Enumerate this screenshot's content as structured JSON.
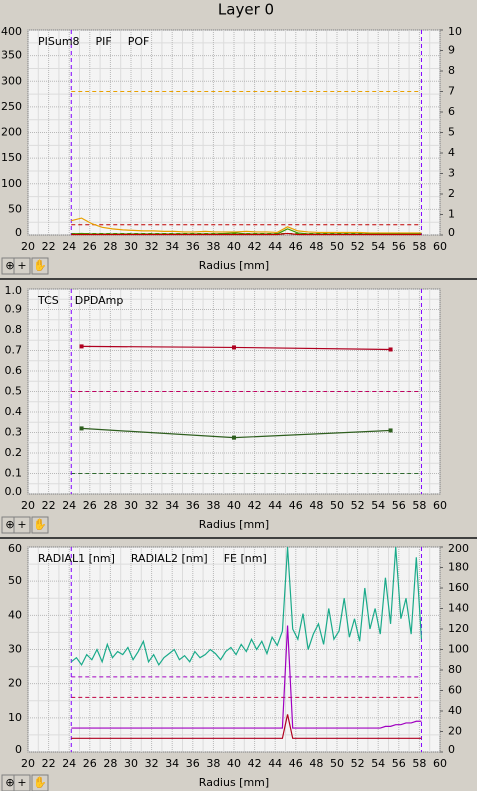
{
  "title": "Layer 0",
  "chart_data": [
    {
      "type": "line",
      "xlabel": "Radius [mm]",
      "xlim": [
        20,
        60
      ],
      "xticks": [
        20,
        22,
        24,
        26,
        28,
        30,
        32,
        34,
        36,
        38,
        40,
        42,
        44,
        46,
        48,
        50,
        52,
        54,
        56,
        58,
        60
      ],
      "ylim": [
        0,
        400
      ],
      "yticks": [
        0,
        50,
        100,
        150,
        200,
        250,
        300,
        350,
        400
      ],
      "y2lim": [
        0,
        10
      ],
      "y2ticks": [
        0,
        1,
        2,
        3,
        4,
        5,
        6,
        7,
        8,
        9,
        10
      ],
      "grid": true,
      "markers": false,
      "vlines": [
        24.2,
        58.2
      ],
      "vline_color": "#8000ff",
      "hlines": [
        {
          "value": 280,
          "color": "#e8a000"
        },
        {
          "value": 20,
          "color": "#c00000"
        },
        {
          "value": 3,
          "color": "#3c9a00"
        }
      ],
      "x": [
        24.2,
        25.2,
        26.2,
        27.2,
        28.2,
        29.2,
        30.2,
        31.2,
        32.2,
        33.2,
        34.2,
        35.2,
        36.2,
        37.2,
        38.2,
        39.2,
        40.2,
        41.2,
        42.2,
        43.2,
        44.2,
        45.2,
        46.2,
        47.2,
        48.2,
        49.2,
        50.2,
        51.2,
        52.2,
        53.2,
        54.2,
        55.2,
        56.2,
        57.2,
        58.2
      ],
      "series": [
        {
          "name": "PISum8",
          "color": "#e8a000",
          "values": [
            28,
            33,
            22,
            15,
            12,
            10,
            9,
            8,
            8,
            7,
            7,
            6,
            6,
            7,
            6,
            6,
            6,
            7,
            6,
            6,
            5,
            16,
            8,
            6,
            5,
            5,
            5,
            5,
            5,
            4,
            4,
            4,
            4,
            4,
            4
          ]
        },
        {
          "name": "PIF",
          "color": "#3c9a00",
          "values": [
            2,
            3,
            2,
            2,
            2,
            2,
            2,
            2,
            2,
            2,
            2,
            2,
            2,
            2,
            2,
            3,
            4,
            2,
            2,
            2,
            2,
            12,
            4,
            2,
            2,
            2,
            2,
            2,
            2,
            2,
            2,
            2,
            2,
            2,
            2
          ]
        },
        {
          "name": "POF",
          "color": "#c00000",
          "values": [
            1,
            1,
            1,
            1,
            1,
            1,
            1,
            1,
            1,
            1,
            1,
            1,
            1,
            1,
            1,
            1,
            1,
            1,
            1,
            1,
            1,
            3,
            1,
            1,
            1,
            1,
            1,
            1,
            1,
            1,
            1,
            1,
            1,
            1,
            1
          ]
        }
      ]
    },
    {
      "type": "line",
      "xlabel": "Radius [mm]",
      "xlim": [
        20,
        60
      ],
      "xticks": [
        20,
        22,
        24,
        26,
        28,
        30,
        32,
        34,
        36,
        38,
        40,
        42,
        44,
        46,
        48,
        50,
        52,
        54,
        56,
        58,
        60
      ],
      "ylim": [
        0,
        1
      ],
      "yticks": [
        {
          "value": 0,
          "label": "0.0"
        },
        0.1,
        0.2,
        0.3,
        0.4,
        0.5,
        0.6,
        0.7,
        0.8,
        0.9,
        {
          "value": 1,
          "label": "1.0"
        }
      ],
      "grid": true,
      "markers": true,
      "vlines": [
        24.2,
        58.2
      ],
      "vline_color": "#8000ff",
      "hlines": [
        {
          "value": 0.5,
          "color": "#c00060"
        },
        {
          "value": 0.1,
          "color": "#2e6b2e"
        }
      ],
      "x": [
        25.2,
        40,
        55.2
      ],
      "series": [
        {
          "name": "TCS",
          "color": "#2e5e1e",
          "values": [
            0.32,
            0.275,
            0.31
          ]
        },
        {
          "name": "DPDAmp",
          "color": "#b00020",
          "values": [
            0.72,
            0.715,
            0.705
          ]
        }
      ]
    },
    {
      "type": "line",
      "xlabel": "Radius [mm]",
      "xlim": [
        20,
        60
      ],
      "xticks": [
        20,
        22,
        24,
        26,
        28,
        30,
        32,
        34,
        36,
        38,
        40,
        42,
        44,
        46,
        48,
        50,
        52,
        54,
        56,
        58,
        60
      ],
      "ylim": [
        0,
        60
      ],
      "yticks": [
        0,
        10,
        20,
        30,
        40,
        50,
        60
      ],
      "y2lim": [
        0,
        200
      ],
      "y2ticks": [
        0,
        20,
        40,
        60,
        80,
        100,
        120,
        140,
        160,
        180,
        200
      ],
      "grid": true,
      "markers": false,
      "vlines": [
        24.2,
        58.2
      ],
      "vline_color": "#8000ff",
      "hlines": [
        {
          "value": 22,
          "color": "#a000c0"
        },
        {
          "value": 16,
          "color": "#c00040"
        }
      ],
      "x": [
        24.2,
        24.7,
        25.2,
        25.7,
        26.2,
        26.7,
        27.2,
        27.7,
        28.2,
        28.7,
        29.2,
        29.7,
        30.2,
        30.7,
        31.2,
        31.7,
        32.2,
        32.7,
        33.2,
        33.7,
        34.2,
        34.7,
        35.2,
        35.7,
        36.2,
        36.7,
        37.2,
        37.7,
        38.2,
        38.7,
        39.2,
        39.7,
        40.2,
        40.7,
        41.2,
        41.7,
        42.2,
        42.7,
        43.2,
        43.7,
        44.2,
        44.7,
        45.2,
        45.7,
        46.2,
        46.7,
        47.2,
        47.7,
        48.2,
        48.7,
        49.2,
        49.7,
        50.2,
        50.7,
        51.2,
        51.7,
        52.2,
        52.7,
        53.2,
        53.7,
        54.2,
        54.7,
        55.2,
        55.7,
        56.2,
        56.7,
        57.2,
        57.7,
        58.2
      ],
      "series": [
        {
          "name": "RADIAL1 [nm]",
          "color": "#a000c0",
          "values": [
            7,
            7,
            7,
            7,
            7,
            7,
            7,
            7,
            7,
            7,
            7,
            7,
            7,
            7,
            7,
            7,
            7,
            7,
            7,
            7,
            7,
            7,
            7,
            7,
            7,
            7,
            7,
            7,
            7,
            7,
            7,
            7,
            7,
            7,
            7,
            7,
            7,
            7,
            7,
            7,
            7,
            7,
            37,
            7,
            7,
            7,
            7,
            7,
            7,
            7,
            7,
            7,
            7,
            7,
            7,
            7,
            7,
            7,
            7,
            7,
            7,
            7.5,
            7.5,
            8,
            8,
            8.5,
            8.5,
            9,
            9
          ]
        },
        {
          "name": "RADIAL2 [nm]",
          "color": "#b00020",
          "values": [
            4,
            4,
            4,
            4,
            4,
            4,
            4,
            4,
            4,
            4,
            4,
            4,
            4,
            4,
            4,
            4,
            4,
            4,
            4,
            4,
            4,
            4,
            4,
            4,
            4,
            4,
            4,
            4,
            4,
            4,
            4,
            4,
            4,
            4,
            4,
            4,
            4,
            4,
            4,
            4,
            4,
            4,
            11,
            4,
            4,
            4,
            4,
            4,
            4,
            4,
            4,
            4,
            4,
            4,
            4,
            4,
            4,
            4,
            4,
            4,
            4,
            4,
            4,
            4,
            4,
            4,
            4,
            4,
            4
          ]
        },
        {
          "name": "FE [nm]",
          "color": "#1aaa8a",
          "axis": "y2",
          "values": [
            88,
            92,
            85,
            95,
            90,
            100,
            88,
            105,
            92,
            98,
            95,
            102,
            90,
            98,
            108,
            88,
            95,
            85,
            92,
            96,
            100,
            90,
            94,
            88,
            98,
            92,
            95,
            100,
            96,
            90,
            98,
            102,
            95,
            105,
            98,
            110,
            100,
            108,
            96,
            112,
            104,
            118,
            200,
            120,
            110,
            135,
            100,
            115,
            125,
            105,
            140,
            110,
            118,
            150,
            112,
            130,
            108,
            160,
            120,
            140,
            115,
            170,
            125,
            200,
            130,
            150,
            115,
            190,
            110
          ]
        }
      ]
    }
  ]
}
